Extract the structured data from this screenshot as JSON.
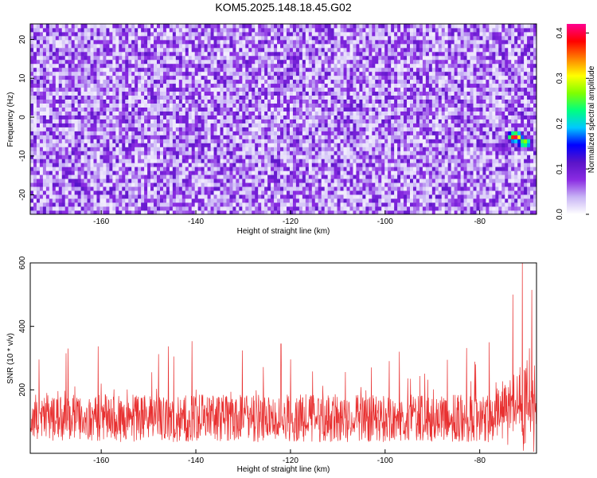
{
  "title": "KOM5.2025.148.18.45.G02",
  "colors": {
    "signal_line": "#e83030",
    "frame": "#000000"
  },
  "chart_data": [
    {
      "type": "heatmap",
      "xlabel": "Height of straight line (km)",
      "ylabel": "Frequency (Hz)",
      "xlim": [
        -175,
        -68
      ],
      "ylim": [
        -25,
        24
      ],
      "xticks": [
        -160,
        -140,
        -120,
        -100,
        -80
      ],
      "yticks": [
        -20,
        -10,
        0,
        10,
        20
      ],
      "colorbar": {
        "label": "Normalized spectral amplitude",
        "range": [
          0.0,
          0.42
        ],
        "ticks": [
          0.0,
          0.1,
          0.2,
          0.3,
          0.4
        ],
        "tick_labels": [
          "0.0",
          "0.1",
          "0.2",
          "0.3",
          "0.4"
        ],
        "colormap": [
          "#ffffff",
          "#c8b4f5",
          "#8a2be2",
          "#5a14c8",
          "#0000ff",
          "#00c8ff",
          "#00ff80",
          "#80ff00",
          "#ffff00",
          "#ff8000",
          "#ff0000",
          "#ff0090"
        ]
      },
      "background_level": 0.06,
      "hotspots": [
        {
          "x": -72.5,
          "y": -5,
          "value": 0.41
        },
        {
          "x": -70.5,
          "y": -6.5,
          "value": 0.3
        },
        {
          "x": -75,
          "y": -7.5,
          "value": 0.12
        },
        {
          "x": -165,
          "y": -17,
          "value": 0.13
        },
        {
          "x": -150,
          "y": 16,
          "value": 0.11
        },
        {
          "x": -100,
          "y": 11,
          "value": 0.11
        },
        {
          "x": -85,
          "y": -22,
          "value": 0.1
        }
      ]
    },
    {
      "type": "line",
      "xlabel": "Height of straight line (km)",
      "ylabel": "SNR (10 * v/v)",
      "xlim": [
        -175,
        -68
      ],
      "ylim": [
        0,
        600
      ],
      "xticks": [
        -160,
        -140,
        -120,
        -100,
        -80
      ],
      "yticks": [
        200,
        400,
        600
      ],
      "series": [
        {
          "x_range": [
            -175,
            -68
          ],
          "baseline_mean": 110,
          "typical_peak": 300,
          "max_value": 600,
          "max_at_x": -71,
          "notable_peaks": [
            {
              "x": -167,
              "y": 330
            },
            {
              "x": -122,
              "y": 345
            },
            {
              "x": -97,
              "y": 320
            },
            {
              "x": -78,
              "y": 350
            },
            {
              "x": -73,
              "y": 500
            },
            {
              "x": -71,
              "y": 600
            },
            {
              "x": -69,
              "y": 515
            }
          ]
        }
      ]
    }
  ]
}
